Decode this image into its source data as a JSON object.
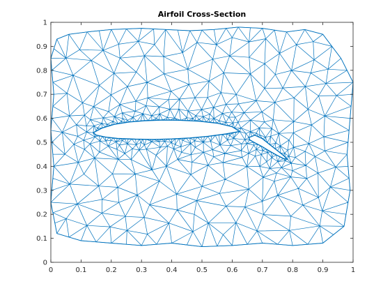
{
  "figure": {
    "title": "Airfoil Cross-Section"
  },
  "colors": {
    "mesh": "#0072BD",
    "axes": "#262626",
    "background": "#ffffff"
  },
  "chart_data": {
    "type": "mesh",
    "title": "Airfoil Cross-Section",
    "xlabel": "",
    "ylabel": "",
    "xlim": [
      0,
      1
    ],
    "ylim": [
      0,
      1
    ],
    "grid": false,
    "x_ticks": [
      "0",
      "0.1",
      "0.2",
      "0.3",
      "0.4",
      "0.5",
      "0.6",
      "0.7",
      "0.8",
      "0.9",
      "1"
    ],
    "y_ticks": [
      "0",
      "0.1",
      "0.2",
      "0.3",
      "0.4",
      "0.5",
      "0.6",
      "0.7",
      "0.8",
      "0.9",
      "1"
    ],
    "outer_boundary": [
      [
        0.02,
        0.93
      ],
      [
        0.06,
        0.95
      ],
      [
        0.12,
        0.96
      ],
      [
        0.2,
        0.97
      ],
      [
        0.3,
        0.975
      ],
      [
        0.38,
        0.97
      ],
      [
        0.46,
        0.965
      ],
      [
        0.54,
        0.97
      ],
      [
        0.62,
        0.98
      ],
      [
        0.7,
        0.975
      ],
      [
        0.78,
        0.96
      ],
      [
        0.84,
        0.97
      ],
      [
        0.9,
        0.95
      ],
      [
        0.96,
        0.85
      ],
      [
        1.0,
        0.75
      ],
      [
        0.99,
        0.6
      ],
      [
        0.98,
        0.45
      ],
      [
        0.99,
        0.3
      ],
      [
        0.97,
        0.15
      ],
      [
        0.9,
        0.08
      ],
      [
        0.8,
        0.07
      ],
      [
        0.7,
        0.08
      ],
      [
        0.6,
        0.07
      ],
      [
        0.5,
        0.065
      ],
      [
        0.4,
        0.08
      ],
      [
        0.3,
        0.07
      ],
      [
        0.2,
        0.08
      ],
      [
        0.1,
        0.09
      ],
      [
        0.02,
        0.12
      ],
      [
        0.0,
        0.25
      ],
      [
        0.01,
        0.4
      ],
      [
        0.0,
        0.55
      ],
      [
        0.01,
        0.7
      ],
      [
        0.0,
        0.85
      ]
    ],
    "main_airfoil": [
      [
        0.14,
        0.54
      ],
      [
        0.17,
        0.56
      ],
      [
        0.21,
        0.575
      ],
      [
        0.26,
        0.585
      ],
      [
        0.31,
        0.59
      ],
      [
        0.37,
        0.593
      ],
      [
        0.43,
        0.592
      ],
      [
        0.49,
        0.588
      ],
      [
        0.55,
        0.58
      ],
      [
        0.6,
        0.565
      ],
      [
        0.625,
        0.545
      ],
      [
        0.58,
        0.535
      ],
      [
        0.52,
        0.525
      ],
      [
        0.46,
        0.518
      ],
      [
        0.4,
        0.514
      ],
      [
        0.34,
        0.512
      ],
      [
        0.28,
        0.513
      ],
      [
        0.22,
        0.516
      ],
      [
        0.18,
        0.522
      ],
      [
        0.15,
        0.53
      ]
    ],
    "flap": [
      [
        0.655,
        0.52
      ],
      [
        0.675,
        0.53
      ],
      [
        0.7,
        0.515
      ],
      [
        0.725,
        0.49
      ],
      [
        0.75,
        0.465
      ],
      [
        0.77,
        0.445
      ],
      [
        0.782,
        0.43
      ],
      [
        0.77,
        0.432
      ],
      [
        0.745,
        0.448
      ],
      [
        0.72,
        0.466
      ],
      [
        0.695,
        0.485
      ],
      [
        0.672,
        0.5
      ],
      [
        0.658,
        0.51
      ]
    ]
  }
}
